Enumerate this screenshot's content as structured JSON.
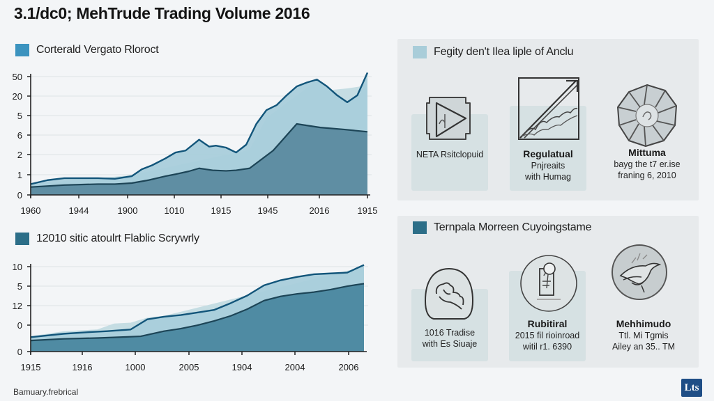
{
  "title": "3.1/dc0; MehTrude Trading Volume 2016",
  "colors": {
    "light_fill": "#a9cedb",
    "light_fill_faint": "#c5dde3",
    "dark_fill": "#5f8ea3",
    "dark_fill_bottom": "#4f8ba3",
    "line_top": "#12557a",
    "line_dark": "#1d4557",
    "legend_blue": "#3b93bf",
    "legend_light": "#a9cdd9",
    "legend_teal": "#2c6e88",
    "logo_bg": "#1f4e86"
  },
  "chart_data": [
    {
      "type": "area",
      "legend": "Corterald Vergato Rloroct",
      "y_tick_labels": [
        "50",
        "20",
        "5",
        "6",
        "2",
        "1",
        "0"
      ],
      "x_tick_labels": [
        "1960",
        "1944",
        "1900",
        "1010",
        "1915",
        "1945",
        "2016",
        "1915"
      ],
      "grid": true,
      "note": "x as fraction of axis length (0-1); y in tick-index units (0 = bottom tick '0', 6 = top tick '50')",
      "series": [
        {
          "name": "upper",
          "x": [
            0,
            0.05,
            0.1,
            0.15,
            0.2,
            0.25,
            0.3,
            0.33,
            0.36,
            0.4,
            0.43,
            0.46,
            0.5,
            0.53,
            0.55,
            0.58,
            0.61,
            0.64,
            0.67,
            0.7,
            0.73,
            0.76,
            0.79,
            0.82,
            0.85,
            0.88,
            0.91,
            0.94,
            0.97,
            1.0
          ],
          "values": [
            0.55,
            0.75,
            0.85,
            0.85,
            0.85,
            0.82,
            0.95,
            1.3,
            1.5,
            1.85,
            2.15,
            2.25,
            2.8,
            2.45,
            2.5,
            2.4,
            2.15,
            2.55,
            3.6,
            4.3,
            4.55,
            5.05,
            5.5,
            5.7,
            5.85,
            5.5,
            5.05,
            4.7,
            5.05,
            6.2
          ]
        },
        {
          "name": "upper_faint",
          "x": [
            0,
            0.2,
            0.3,
            0.57,
            0.6,
            0.65,
            0.7,
            0.85,
            0.88,
            0.94,
            0.98,
            1.0
          ],
          "values": [
            0.55,
            0.85,
            1.0,
            2.0,
            2.05,
            2.3,
            3.9,
            5.8,
            5.3,
            5.4,
            5.5,
            6.0
          ]
        },
        {
          "name": "lower",
          "x": [
            0,
            0.1,
            0.2,
            0.25,
            0.3,
            0.35,
            0.4,
            0.43,
            0.47,
            0.5,
            0.54,
            0.58,
            0.61,
            0.65,
            0.72,
            0.79,
            0.86,
            0.93,
            1.0
          ],
          "values": [
            0.4,
            0.5,
            0.55,
            0.55,
            0.6,
            0.75,
            0.95,
            1.05,
            1.2,
            1.35,
            1.25,
            1.22,
            1.25,
            1.35,
            2.25,
            3.6,
            3.42,
            3.32,
            3.2
          ]
        }
      ]
    },
    {
      "type": "area",
      "legend": "12010 sitic atoulrt Flablic Scrywrly",
      "y_tick_labels": [
        "10",
        "5",
        "12",
        "0",
        "0"
      ],
      "x_tick_labels": [
        "1915",
        "1916",
        "1000",
        "2005",
        "1904",
        "2004",
        "2006"
      ],
      "grid": true,
      "note": "x as fraction of axis length (0-1); y as fraction of axis height (0-1)",
      "series": [
        {
          "name": "upper",
          "x": [
            0,
            0.1,
            0.18,
            0.23,
            0.3,
            0.35,
            0.4,
            0.45,
            0.5,
            0.55,
            0.6,
            0.65,
            0.7,
            0.75,
            0.8,
            0.85,
            0.9,
            0.95,
            1.0
          ],
          "values": [
            0.17,
            0.21,
            0.23,
            0.24,
            0.26,
            0.38,
            0.41,
            0.43,
            0.46,
            0.49,
            0.57,
            0.66,
            0.78,
            0.84,
            0.88,
            0.91,
            0.92,
            0.93,
            1.02
          ]
        },
        {
          "name": "upper_faint",
          "x": [
            0,
            0.1,
            0.2,
            0.25,
            0.3,
            0.35,
            0.4,
            1.0
          ],
          "values": [
            0.18,
            0.24,
            0.26,
            0.33,
            0.34,
            0.4,
            0.42,
            1.0
          ]
        },
        {
          "name": "lower",
          "x": [
            0,
            0.1,
            0.2,
            0.27,
            0.33,
            0.4,
            0.45,
            0.5,
            0.55,
            0.6,
            0.65,
            0.7,
            0.75,
            0.8,
            0.85,
            0.9,
            0.95,
            1.0
          ],
          "values": [
            0.13,
            0.15,
            0.16,
            0.17,
            0.18,
            0.24,
            0.27,
            0.31,
            0.36,
            0.42,
            0.5,
            0.6,
            0.65,
            0.68,
            0.7,
            0.73,
            0.77,
            0.8
          ]
        }
      ]
    }
  ],
  "panels": [
    {
      "legend": "Fegity den't Ilea liple of Anclu",
      "cards": [
        {
          "icon": "play-icon",
          "heading": "",
          "lines": [
            "NETA Rsitclopuid"
          ]
        },
        {
          "icon": "trend-arrow-icon",
          "heading": "Regulatual",
          "lines": [
            "Pnjreaits",
            "with Humag"
          ]
        },
        {
          "icon": "shutter-icon",
          "heading": "Mittuma",
          "lines": [
            "bayg the t7 er.ise",
            "franing 6, 2010"
          ]
        }
      ]
    },
    {
      "legend": "Ternpala Morreen Cuyoingstame",
      "cards": [
        {
          "icon": "handshake-icon",
          "heading": "",
          "lines": [
            "1016 Tradise",
            "with Es Siuaje"
          ]
        },
        {
          "icon": "document-magnifier-icon",
          "heading": "Rubitiral",
          "lines": [
            "2015 fil rioinroad",
            "witil r1. 6390"
          ]
        },
        {
          "icon": "bird-hand-icon",
          "heading": "Mehhimudo",
          "lines": [
            "Ttl. Mi Tgmis",
            "Ailey an 35.. TM"
          ]
        }
      ]
    }
  ],
  "footer": "Bamuary.frebrical",
  "logo": "Lts"
}
